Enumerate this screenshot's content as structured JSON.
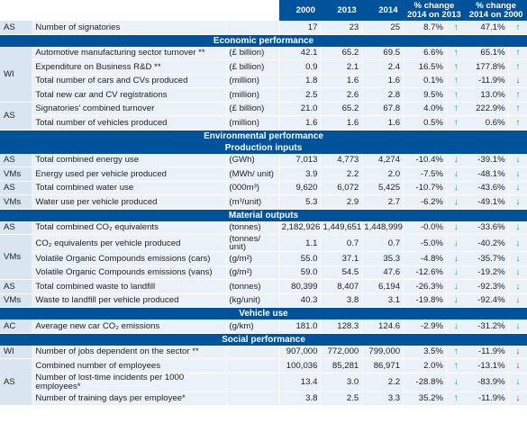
{
  "headers": {
    "y2000": "2000",
    "y2013": "2013",
    "y2014": "2014",
    "pct13": "% change 2014 on 2013",
    "pct00": "% change 2014 on 2000"
  },
  "sections": {
    "economic": "Economic performance",
    "environmental": "Environmental performance",
    "production_inputs": "Production inputs",
    "material_outputs": "Material outputs",
    "vehicle_use": "Vehicle use",
    "social": "Social performance"
  },
  "colors": {
    "header_bg": "#00539b",
    "up_green": "#2f9e44",
    "down_green": "#2f9e44",
    "down_red": "#d32020"
  },
  "rows": {
    "r1": {
      "grp": "AS",
      "desc": "Number of signatories",
      "unit": "",
      "v2000": "17",
      "v2013": "23",
      "v2014": "25",
      "p13": "8.7%",
      "a13": "↑",
      "p00": "47.1%",
      "a00": "↑"
    },
    "r2": {
      "grp": "WI",
      "desc": "Automotive manufacturing sector turnover **",
      "unit": "(£ billion)",
      "v2000": "42.1",
      "v2013": "65.2",
      "v2014": "69.5",
      "p13": "6.6%",
      "a13": "↑",
      "p00": "65.1%",
      "a00": "↑"
    },
    "r3": {
      "desc": "Expenditure on Business R&D **",
      "unit": "(£ billion)",
      "v2000": "0.9",
      "v2013": "2.1",
      "v2014": "2.4",
      "p13": "16.5%",
      "a13": "↑",
      "p00": "177.8%",
      "a00": "↑"
    },
    "r4": {
      "desc": "Total number of cars and CVs produced",
      "unit": "(million)",
      "v2000": "1.8",
      "v2013": "1.6",
      "v2014": "1.6",
      "p13": "0.1%",
      "a13": "↑",
      "p00": "-11.9%",
      "a00": "↓"
    },
    "r5": {
      "desc": "Total new car and CV registrations",
      "unit": "(million)",
      "v2000": "2.5",
      "v2013": "2.6",
      "v2014": "2.8",
      "p13": "9.5%",
      "a13": "↑",
      "p00": "13.0%",
      "a00": "↑"
    },
    "r6": {
      "grp": "AS",
      "desc": "Signatories' combined turnover",
      "unit": "(£ billion)",
      "v2000": "21.0",
      "v2013": "65.2",
      "v2014": "67.8",
      "p13": "4.0%",
      "a13": "↑",
      "p00": "222.9%",
      "a00": "↑"
    },
    "r7": {
      "desc": "Total number of vehicles produced",
      "unit": "(million)",
      "v2000": "1.6",
      "v2013": "1.6",
      "v2014": "1.6",
      "p13": "0.5%",
      "a13": "↑",
      "p00": "0.6%",
      "a00": "↑"
    },
    "r8": {
      "grp": "AS",
      "desc": "Total combined energy use",
      "unit": "(GWh)",
      "v2000": "7,013",
      "v2013": "4,773",
      "v2014": "4,274",
      "p13": "-10.4%",
      "a13": "↓",
      "p00": "-39.1%",
      "a00": "↓"
    },
    "r9": {
      "grp": "VMs",
      "desc": "Energy used per vehicle produced",
      "unit": "(MWh/ unit)",
      "v2000": "3.9",
      "v2013": "2.2",
      "v2014": "2.0",
      "p13": "-7.5%",
      "a13": "↓",
      "p00": "-48.1%",
      "a00": "↓"
    },
    "r10": {
      "grp": "AS",
      "desc": "Total combined water use",
      "unit": "(000m³)",
      "v2000": "9,620",
      "v2013": "6,072",
      "v2014": "5,425",
      "p13": "-10.7%",
      "a13": "↓",
      "p00": "-43.6%",
      "a00": "↓"
    },
    "r11": {
      "grp": "VMs",
      "desc": "Water use per vehicle produced",
      "unit": "(m³/unit)",
      "v2000": "5.3",
      "v2013": "2.9",
      "v2014": "2.7",
      "p13": "-6.2%",
      "a13": "↓",
      "p00": "-49.1%",
      "a00": "↓"
    },
    "r12": {
      "grp": "AS",
      "desc": "Total combined CO₂ equivalents",
      "unit": "(tonnes)",
      "v2000": "2,182,926",
      "v2013": "1,449,651",
      "v2014": "1,448,999",
      "p13": "-0.0%",
      "a13": "↓",
      "p00": "-33.6%",
      "a00": "↓"
    },
    "r13": {
      "grp": "VMs",
      "desc": "CO₂ equivalents per vehicle produced",
      "unit": "(tonnes/ unit)",
      "v2000": "1.1",
      "v2013": "0.7",
      "v2014": "0.7",
      "p13": "-5.0%",
      "a13": "↓",
      "p00": "-40.2%",
      "a00": "↓"
    },
    "r14": {
      "desc": "Volatile Organic Compounds emissions (cars)",
      "unit": "(g/m²)",
      "v2000": "55.0",
      "v2013": "37.1",
      "v2014": "35.3",
      "p13": "-4.8%",
      "a13": "↓",
      "p00": "-35.7%",
      "a00": "↓"
    },
    "r15": {
      "desc": "Volatile Organic Compounds emissions (vans)",
      "unit": "(g/m²)",
      "v2000": "59.0",
      "v2013": "54.5",
      "v2014": "47.6",
      "p13": "-12.6%",
      "a13": "↓",
      "p00": "-19.2%",
      "a00": "↓"
    },
    "r16": {
      "grp": "AS",
      "desc": "Total combined waste to landfill",
      "unit": "(tonnes)",
      "v2000": "80,399",
      "v2013": "8,407",
      "v2014": "6,194",
      "p13": "-26.3%",
      "a13": "↓",
      "p00": "-92.3%",
      "a00": "↓"
    },
    "r17": {
      "grp": "VMs",
      "desc": "Waste to landfill per vehicle produced",
      "unit": "(kg/unit)",
      "v2000": "40.3",
      "v2013": "3.8",
      "v2014": "3.1",
      "p13": "-19.8%",
      "a13": "↓",
      "p00": "-92.4%",
      "a00": "↓"
    },
    "r18": {
      "grp": "AC",
      "desc": "Average new car CO₂ emissions",
      "unit": "(g/km)",
      "v2000": "181.0",
      "v2013": "128.3",
      "v2014": "124.6",
      "p13": "-2.9%",
      "a13": "↓",
      "p00": "-31.2%",
      "a00": "↓"
    },
    "r19": {
      "grp": "WI",
      "desc": "Number of jobs dependent on the sector **",
      "unit": "",
      "v2000": "907,000",
      "v2013": "772,000",
      "v2014": "799,000",
      "p13": "3.5%",
      "a13": "↑",
      "p00": "-11.9%",
      "a00": "↓"
    },
    "r20": {
      "grp": "AS",
      "desc": "Combined number of employees",
      "unit": "",
      "v2000": "100,036",
      "v2013": "85,281",
      "v2014": "86,971",
      "p13": "2.0%",
      "a13": "↑",
      "p00": "-13.1%",
      "a00": "↓"
    },
    "r21": {
      "desc": "Number of lost-time incidents per 1000 employees*",
      "unit": "",
      "v2000": "13.4",
      "v2013": "3.0",
      "v2014": "2.2",
      "p13": "-28.8%",
      "a13": "↓",
      "p00": "-83.9%",
      "a00": "↓"
    },
    "r22": {
      "desc": "Number of training days per employee*",
      "unit": "",
      "v2000": "3.8",
      "v2013": "2.5",
      "v2014": "3.3",
      "p13": "35.2%",
      "a13": "↑",
      "p00": "-11.9%",
      "a00": "↓"
    }
  }
}
